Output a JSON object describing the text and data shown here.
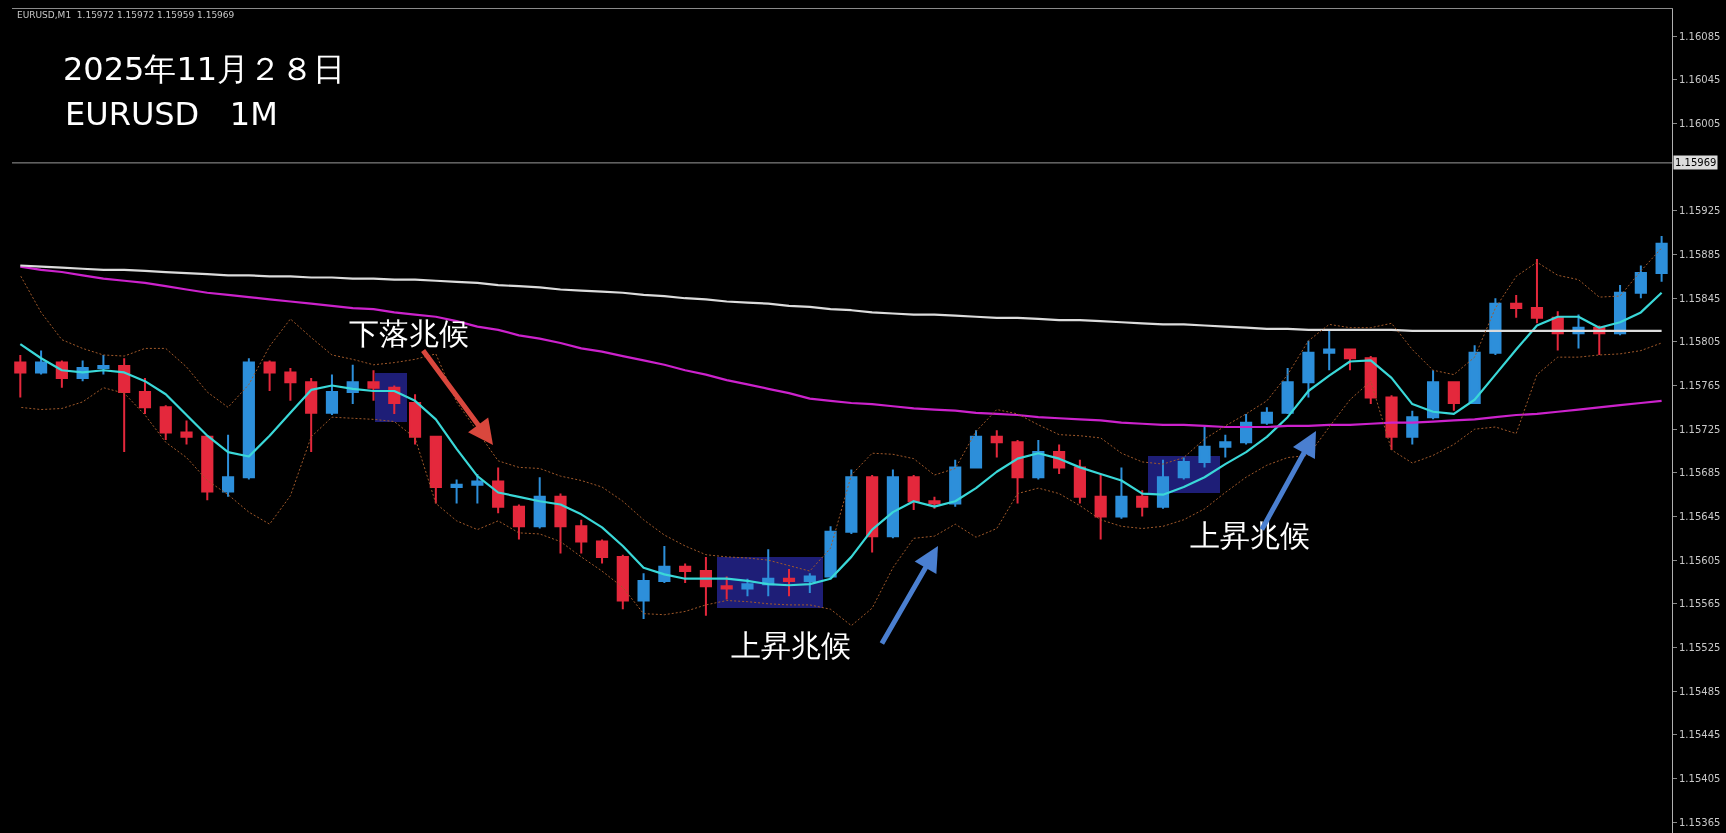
{
  "chart_data": {
    "type": "candlestick",
    "title": "2025年11月２８日",
    "subtitle": "EURUSD   1M",
    "annotations": [
      "EURUSD,M1  1.15972 1.15972 1.15959 1.15969",
      "下落兆候",
      "上昇兆候",
      "上昇兆候"
    ],
    "categories": [
      null,
      null,
      null,
      null,
      null,
      null,
      null,
      null,
      null,
      null,
      null,
      null,
      null,
      null,
      null,
      null,
      null,
      null,
      null,
      null,
      null,
      null,
      null,
      null,
      null,
      null,
      null,
      null,
      null,
      null,
      null,
      null,
      null,
      null,
      null,
      null,
      null,
      null,
      null,
      null,
      null,
      null,
      null,
      null,
      null,
      null,
      null,
      null,
      null,
      null,
      null,
      null,
      null,
      null,
      null,
      null,
      null,
      null,
      null,
      null,
      null,
      null,
      null,
      null,
      null,
      null,
      null,
      null,
      null,
      null,
      null,
      null,
      null,
      null,
      null,
      null,
      null,
      null,
      null,
      null
    ],
    "ohlc": [
      [
        1.15786,
        1.15793,
        1.15754,
        1.15777
      ],
      [
        1.15777,
        1.15797,
        1.15775,
        1.15786
      ],
      [
        1.15786,
        1.15788,
        1.15763,
        1.15772
      ],
      [
        1.15772,
        1.15788,
        1.15769,
        1.15781
      ],
      [
        1.15781,
        1.15793,
        1.15775,
        1.15783
      ],
      [
        1.15783,
        1.1579,
        1.15704,
        1.15759
      ],
      [
        1.15759,
        1.15772,
        1.15739,
        1.15745
      ],
      [
        1.15745,
        1.15747,
        1.15715,
        1.15722
      ],
      [
        1.15722,
        1.15733,
        1.15711,
        1.15718
      ],
      [
        1.15718,
        1.15719,
        1.1566,
        1.15668
      ],
      [
        1.15668,
        1.1572,
        1.15663,
        1.15681
      ],
      [
        1.15681,
        1.1579,
        1.15679,
        1.15786
      ],
      [
        1.15786,
        1.15788,
        1.1576,
        1.15777
      ],
      [
        1.15777,
        1.15781,
        1.15751,
        1.15768
      ],
      [
        1.15768,
        1.15772,
        1.15704,
        1.1574
      ],
      [
        1.1574,
        1.15775,
        1.15738,
        1.15759
      ],
      [
        1.15759,
        1.15784,
        1.15748,
        1.15768
      ],
      [
        1.15768,
        1.15779,
        1.15751,
        1.15763
      ],
      [
        1.15763,
        1.15765,
        1.15739,
        1.15749
      ],
      [
        1.15749,
        1.15757,
        1.15711,
        1.15718
      ],
      [
        1.15718,
        1.15719,
        1.15657,
        1.15672
      ],
      [
        1.15672,
        1.15679,
        1.15657,
        1.15674
      ],
      [
        1.15674,
        1.15684,
        1.15657,
        1.15677
      ],
      [
        1.15677,
        1.1569,
        1.15648,
        1.15654
      ],
      [
        1.15654,
        1.15656,
        1.15624,
        1.15636
      ],
      [
        1.15636,
        1.15681,
        1.15634,
        1.15663
      ],
      [
        1.15663,
        1.15666,
        1.15611,
        1.15636
      ],
      [
        1.15636,
        1.15642,
        1.15611,
        1.15622
      ],
      [
        1.15622,
        1.15624,
        1.15602,
        1.15608
      ],
      [
        1.15608,
        1.1561,
        1.1556,
        1.15568
      ],
      [
        1.15568,
        1.15593,
        1.15551,
        1.15586
      ],
      [
        1.15586,
        1.15618,
        1.15584,
        1.15599
      ],
      [
        1.15599,
        1.15602,
        1.15584,
        1.15595
      ],
      [
        1.15595,
        1.15608,
        1.15554,
        1.15581
      ],
      [
        1.15581,
        1.1559,
        1.15569,
        1.15579
      ],
      [
        1.15579,
        1.15588,
        1.15572,
        1.15583
      ],
      [
        1.15583,
        1.15615,
        1.15572,
        1.15588
      ],
      [
        1.15588,
        1.15597,
        1.15572,
        1.15586
      ],
      [
        1.15586,
        1.15593,
        1.15575,
        1.1559
      ],
      [
        1.1559,
        1.15636,
        1.15588,
        1.15631
      ],
      [
        1.15631,
        1.15688,
        1.15629,
        1.15681
      ],
      [
        1.15681,
        1.15683,
        1.15612,
        1.15627
      ],
      [
        1.15627,
        1.15688,
        1.15625,
        1.15681
      ],
      [
        1.15681,
        1.15683,
        1.15651,
        1.15659
      ],
      [
        1.15659,
        1.15663,
        1.15652,
        1.15657
      ],
      [
        1.15657,
        1.15697,
        1.15654,
        1.1569
      ],
      [
        1.1569,
        1.15724,
        1.15689,
        1.15718
      ],
      [
        1.15718,
        1.15724,
        1.15699,
        1.15713
      ],
      [
        1.15713,
        1.15715,
        1.15657,
        1.15681
      ],
      [
        1.15681,
        1.15715,
        1.15679,
        1.15704
      ],
      [
        1.15704,
        1.15711,
        1.15684,
        1.1569
      ],
      [
        1.1569,
        1.15697,
        1.15657,
        1.15663
      ],
      [
        1.15663,
        1.15684,
        1.15624,
        1.15645
      ],
      [
        1.15645,
        1.1569,
        1.15643,
        1.15663
      ],
      [
        1.15663,
        1.15669,
        1.15645,
        1.15654
      ],
      [
        1.15654,
        1.15697,
        1.15652,
        1.15681
      ],
      [
        1.15681,
        1.15699,
        1.15679,
        1.15695
      ],
      [
        1.15695,
        1.15727,
        1.1569,
        1.15709
      ],
      [
        1.15709,
        1.1572,
        1.15699,
        1.15713
      ],
      [
        1.15713,
        1.15739,
        1.15711,
        1.15731
      ],
      [
        1.15731,
        1.15745,
        1.15729,
        1.1574
      ],
      [
        1.1574,
        1.15781,
        1.15739,
        1.15768
      ],
      [
        1.15768,
        1.15806,
        1.15754,
        1.15795
      ],
      [
        1.15795,
        1.15815,
        1.15779,
        1.15798
      ],
      [
        1.15798,
        1.15799,
        1.15779,
        1.1579
      ],
      [
        1.1579,
        1.15792,
        1.15748,
        1.15754
      ],
      [
        1.15754,
        1.15756,
        1.15706,
        1.15718
      ],
      [
        1.15718,
        1.15742,
        1.15711,
        1.15736
      ],
      [
        1.15736,
        1.15779,
        1.15734,
        1.15768
      ],
      [
        1.15768,
        1.15769,
        1.15742,
        1.15749
      ],
      [
        1.15749,
        1.15802,
        1.15748,
        1.15795
      ],
      [
        1.15795,
        1.15845,
        1.15793,
        1.1584
      ],
      [
        1.1584,
        1.15848,
        1.15827,
        1.15836
      ],
      [
        1.15836,
        1.15881,
        1.15822,
        1.15827
      ],
      [
        1.15827,
        1.15833,
        1.15797,
        1.15813
      ],
      [
        1.15813,
        1.1583,
        1.15799,
        1.15818
      ],
      [
        1.15818,
        1.1582,
        1.15793,
        1.15813
      ],
      [
        1.15813,
        1.15857,
        1.15811,
        1.1585
      ],
      [
        1.1585,
        1.15875,
        1.15845,
        1.15868
      ],
      [
        1.15868,
        1.15902,
        1.1586,
        1.15895
      ]
    ],
    "colors": [
      "#e4283c",
      "#2d8fda",
      "#e4283c",
      "#2d8fda",
      "#2d8fda",
      "#e4283c",
      "#e4283c",
      "#e4283c",
      "#e4283c",
      "#e4283c",
      "#2d8fda",
      "#2d8fda",
      "#e4283c",
      "#e4283c",
      "#e4283c",
      "#2d8fda",
      "#2d8fda",
      "#e4283c",
      "#e4283c",
      "#e4283c",
      "#e4283c",
      "#2d8fda",
      "#2d8fda",
      "#e4283c",
      "#e4283c",
      "#2d8fda",
      "#e4283c",
      "#e4283c",
      "#e4283c",
      "#e4283c",
      "#2d8fda",
      "#2d8fda",
      "#e4283c",
      "#e4283c",
      "#e4283c",
      "#2d8fda",
      "#2d8fda",
      "#e4283c",
      "#2d8fda",
      "#2d8fda",
      "#2d8fda",
      "#e4283c",
      "#2d8fda",
      "#e4283c",
      "#e4283c",
      "#2d8fda",
      "#2d8fda",
      "#e4283c",
      "#e4283c",
      "#2d8fda",
      "#e4283c",
      "#e4283c",
      "#e4283c",
      "#2d8fda",
      "#e4283c",
      "#2d8fda",
      "#2d8fda",
      "#2d8fda",
      "#2d8fda",
      "#2d8fda",
      "#2d8fda",
      "#2d8fda",
      "#2d8fda",
      "#2d8fda",
      "#e4283c",
      "#e4283c",
      "#e4283c",
      "#2d8fda",
      "#2d8fda",
      "#e4283c",
      "#2d8fda",
      "#2d8fda",
      "#e4283c",
      "#e4283c",
      "#e4283c",
      "#2d8fda",
      "#e4283c",
      "#2d8fda",
      "#2d8fda",
      "#2d8fda"
    ],
    "series": [
      {
        "type": "line",
        "color": "#3ad8d8",
        "values": [
          1.15803,
          1.1579,
          1.15779,
          1.15777,
          1.15779,
          1.15777,
          1.15769,
          1.15757,
          1.15738,
          1.15719,
          1.15704,
          1.157,
          1.15719,
          1.1574,
          1.15761,
          1.15765,
          1.15762,
          1.1576,
          1.1576,
          1.15751,
          1.15734,
          1.15707,
          1.15682,
          1.15667,
          1.15663,
          1.15659,
          1.15656,
          1.15647,
          1.15635,
          1.15618,
          1.15598,
          1.15592,
          1.15588,
          1.15588,
          1.15588,
          1.15586,
          1.15583,
          1.15582,
          1.15583,
          1.15588,
          1.15608,
          1.15633,
          1.15649,
          1.15659,
          1.15654,
          1.15659,
          1.15671,
          1.15686,
          1.15698,
          1.15703,
          1.15698,
          1.1569,
          1.15684,
          1.15678,
          1.15666,
          1.15665,
          1.15672,
          1.15681,
          1.15693,
          1.15704,
          1.15718,
          1.15736,
          1.1576,
          1.15774,
          1.15787,
          1.15788,
          1.15772,
          1.15748,
          1.15741,
          1.15739,
          1.15752,
          1.15775,
          1.15798,
          1.1582,
          1.15828,
          1.15828,
          1.15818,
          1.15823,
          1.15832,
          1.1585
        ]
      },
      {
        "type": "line",
        "color": "#cc22cc",
        "values": [
          1.15874,
          1.15871,
          1.15869,
          1.15866,
          1.15863,
          1.15861,
          1.15859,
          1.15856,
          1.15853,
          1.1585,
          1.15848,
          1.15846,
          1.15844,
          1.15842,
          1.1584,
          1.15838,
          1.15836,
          1.15835,
          1.15832,
          1.1583,
          1.15828,
          1.15824,
          1.15819,
          1.15816,
          1.15811,
          1.15808,
          1.15804,
          1.15799,
          1.15796,
          1.15792,
          1.15788,
          1.15784,
          1.15779,
          1.15775,
          1.1577,
          1.15766,
          1.15762,
          1.15758,
          1.15753,
          1.15751,
          1.15749,
          1.15748,
          1.15746,
          1.15744,
          1.15743,
          1.15742,
          1.1574,
          1.15739,
          1.15738,
          1.15736,
          1.15735,
          1.15734,
          1.15733,
          1.15731,
          1.1573,
          1.15729,
          1.15729,
          1.15728,
          1.15727,
          1.15727,
          1.15727,
          1.15728,
          1.15728,
          1.15729,
          1.15729,
          1.1573,
          1.15731,
          1.15731,
          1.15732,
          1.15733,
          1.15734,
          1.15736,
          1.15738,
          1.15739,
          1.15741,
          1.15743,
          1.15745,
          1.15747,
          1.15749,
          1.15751
        ]
      },
      {
        "type": "line",
        "color": "#dcdcdc",
        "values": [
          1.15875,
          1.15874,
          1.15873,
          1.15872,
          1.15871,
          1.15871,
          1.1587,
          1.15869,
          1.15868,
          1.15867,
          1.15866,
          1.15866,
          1.15865,
          1.15865,
          1.15864,
          1.15864,
          1.15863,
          1.15863,
          1.15862,
          1.15862,
          1.15861,
          1.1586,
          1.15859,
          1.15857,
          1.15856,
          1.15855,
          1.15853,
          1.15852,
          1.15851,
          1.1585,
          1.15848,
          1.15847,
          1.15845,
          1.15844,
          1.15842,
          1.15841,
          1.1584,
          1.15838,
          1.15837,
          1.15835,
          1.15834,
          1.15832,
          1.15831,
          1.1583,
          1.1583,
          1.15829,
          1.15828,
          1.15827,
          1.15827,
          1.15826,
          1.15825,
          1.15825,
          1.15824,
          1.15823,
          1.15822,
          1.15821,
          1.15821,
          1.1582,
          1.15819,
          1.15818,
          1.15817,
          1.15817,
          1.15816,
          1.15816,
          1.15816,
          1.15816,
          1.15816,
          1.15815,
          1.15815,
          1.15815,
          1.15815,
          1.15815,
          1.15815,
          1.15815,
          1.15815,
          1.15815,
          1.15815,
          1.15815,
          1.15815,
          1.15815
        ]
      },
      {
        "type": "line",
        "color": "#a0592a",
        "line_style": "dotted",
        "values": [
          1.15866,
          1.15832,
          1.15807,
          1.15799,
          1.15793,
          1.15792,
          1.15799,
          1.15799,
          1.15782,
          1.15759,
          1.15745,
          1.15766,
          1.15801,
          1.15826,
          1.15809,
          1.15793,
          1.15789,
          1.15784,
          1.15786,
          1.15789,
          1.15794,
          1.1575,
          1.15723,
          1.15696,
          1.1569,
          1.15689,
          1.15682,
          1.15678,
          1.15672,
          1.15659,
          1.15642,
          1.15628,
          1.15618,
          1.1561,
          1.15608,
          1.15607,
          1.15605,
          1.156,
          1.15595,
          1.15616,
          1.15683,
          1.15703,
          1.15702,
          1.15698,
          1.15683,
          1.15689,
          1.15723,
          1.15743,
          1.15739,
          1.15729,
          1.1572,
          1.15719,
          1.15717,
          1.15703,
          1.15695,
          1.15693,
          1.15699,
          1.15716,
          1.15728,
          1.15739,
          1.15751,
          1.15775,
          1.15806,
          1.15821,
          1.15818,
          1.15818,
          1.15822,
          1.15798,
          1.15779,
          1.15775,
          1.15791,
          1.15836,
          1.15865,
          1.15878,
          1.15866,
          1.15862,
          1.15846,
          1.15847,
          1.1587,
          1.15891
        ]
      },
      {
        "type": "line",
        "color": "#a0592a",
        "line_style": "dotted",
        "values": [
          1.15745,
          1.15743,
          1.15744,
          1.1575,
          1.15763,
          1.15758,
          1.15738,
          1.15713,
          1.15699,
          1.15678,
          1.15665,
          1.15649,
          1.15638,
          1.15664,
          1.15718,
          1.15736,
          1.15735,
          1.15734,
          1.15732,
          1.15717,
          1.15657,
          1.15641,
          1.15633,
          1.15641,
          1.1563,
          1.15629,
          1.15622,
          1.15608,
          1.15595,
          1.1558,
          1.15556,
          1.15555,
          1.15558,
          1.15564,
          1.15568,
          1.15567,
          1.15565,
          1.15564,
          1.15564,
          1.1556,
          1.15545,
          1.15561,
          1.15598,
          1.15625,
          1.15627,
          1.15638,
          1.15626,
          1.15634,
          1.15666,
          1.15671,
          1.15666,
          1.15655,
          1.15642,
          1.15636,
          1.15634,
          1.15636,
          1.15642,
          1.15652,
          1.15667,
          1.15681,
          1.15692,
          1.15699,
          1.15701,
          1.15727,
          1.15752,
          1.15769,
          1.15706,
          1.15694,
          1.15701,
          1.15711,
          1.15725,
          1.15727,
          1.15721,
          1.15775,
          1.15791,
          1.15791,
          1.15793,
          1.15794,
          1.15797,
          1.15804
        ]
      }
    ],
    "ref_lines": [
      {
        "axis": "y",
        "value": 1.15969,
        "label": "1.15969",
        "color": "#9a9a9a"
      }
    ],
    "ylim": [
      1.15355,
      1.1611
    ],
    "yticks": [
      1.16085,
      1.16045,
      1.16005,
      1.15925,
      1.15885,
      1.15845,
      1.15805,
      1.15765,
      1.15725,
      1.15685,
      1.15645,
      1.15605,
      1.15565,
      1.15525,
      1.15485,
      1.15445,
      1.15405,
      1.15365
    ],
    "tick_labels": "y"
  }
}
